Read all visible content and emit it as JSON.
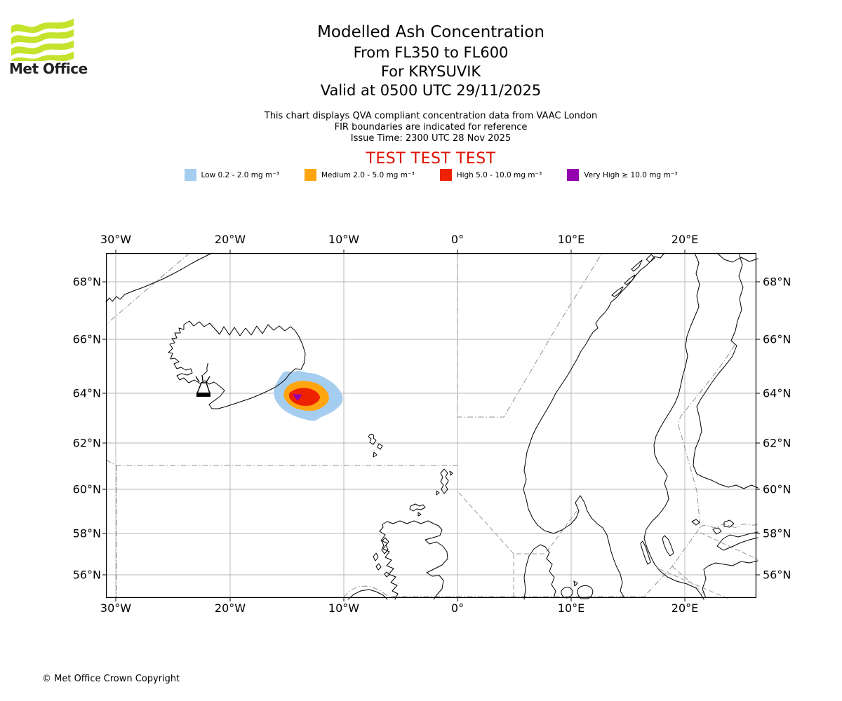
{
  "logo": {
    "brand": "Met Office",
    "wave_color": "#c3e32d"
  },
  "header": {
    "title": "Modelled Ash Concentration",
    "subtitle_lines": [
      "From FL350 to FL600",
      "For KRYSUVIK",
      "Valid at 0500 UTC 29/11/2025"
    ]
  },
  "notes": {
    "lines": [
      "This chart displays QVA compliant concentration data from VAAC London",
      "FIR boundaries are indicated for reference",
      "Issue Time: 2300 UTC 28 Nov 2025"
    ]
  },
  "test_banner": {
    "text": "TEST TEST TEST",
    "color": "#dd1100"
  },
  "legend": {
    "items": [
      {
        "label": "Low 0.2 - 2.0 mg m⁻³",
        "color": "#a5cdef"
      },
      {
        "label": "Medium 2.0 - 5.0 mg m⁻³",
        "color": "#ffa510"
      },
      {
        "label": "High 5.0 - 10.0 mg m⁻³",
        "color": "#ee2200"
      },
      {
        "label": "Very High ≥ 10.0 mg m⁻³",
        "color": "#9500ae"
      }
    ]
  },
  "map": {
    "x_axis": {
      "ticks": [
        "30°W",
        "20°W",
        "10°W",
        "0°",
        "10°E",
        "20°E"
      ]
    },
    "y_axis": {
      "ticks": [
        "68°N",
        "66°N",
        "64°N",
        "62°N",
        "60°N",
        "58°N",
        "56°N"
      ]
    }
  },
  "footer": {
    "copyright": "© Met Office Crown Copyright"
  }
}
